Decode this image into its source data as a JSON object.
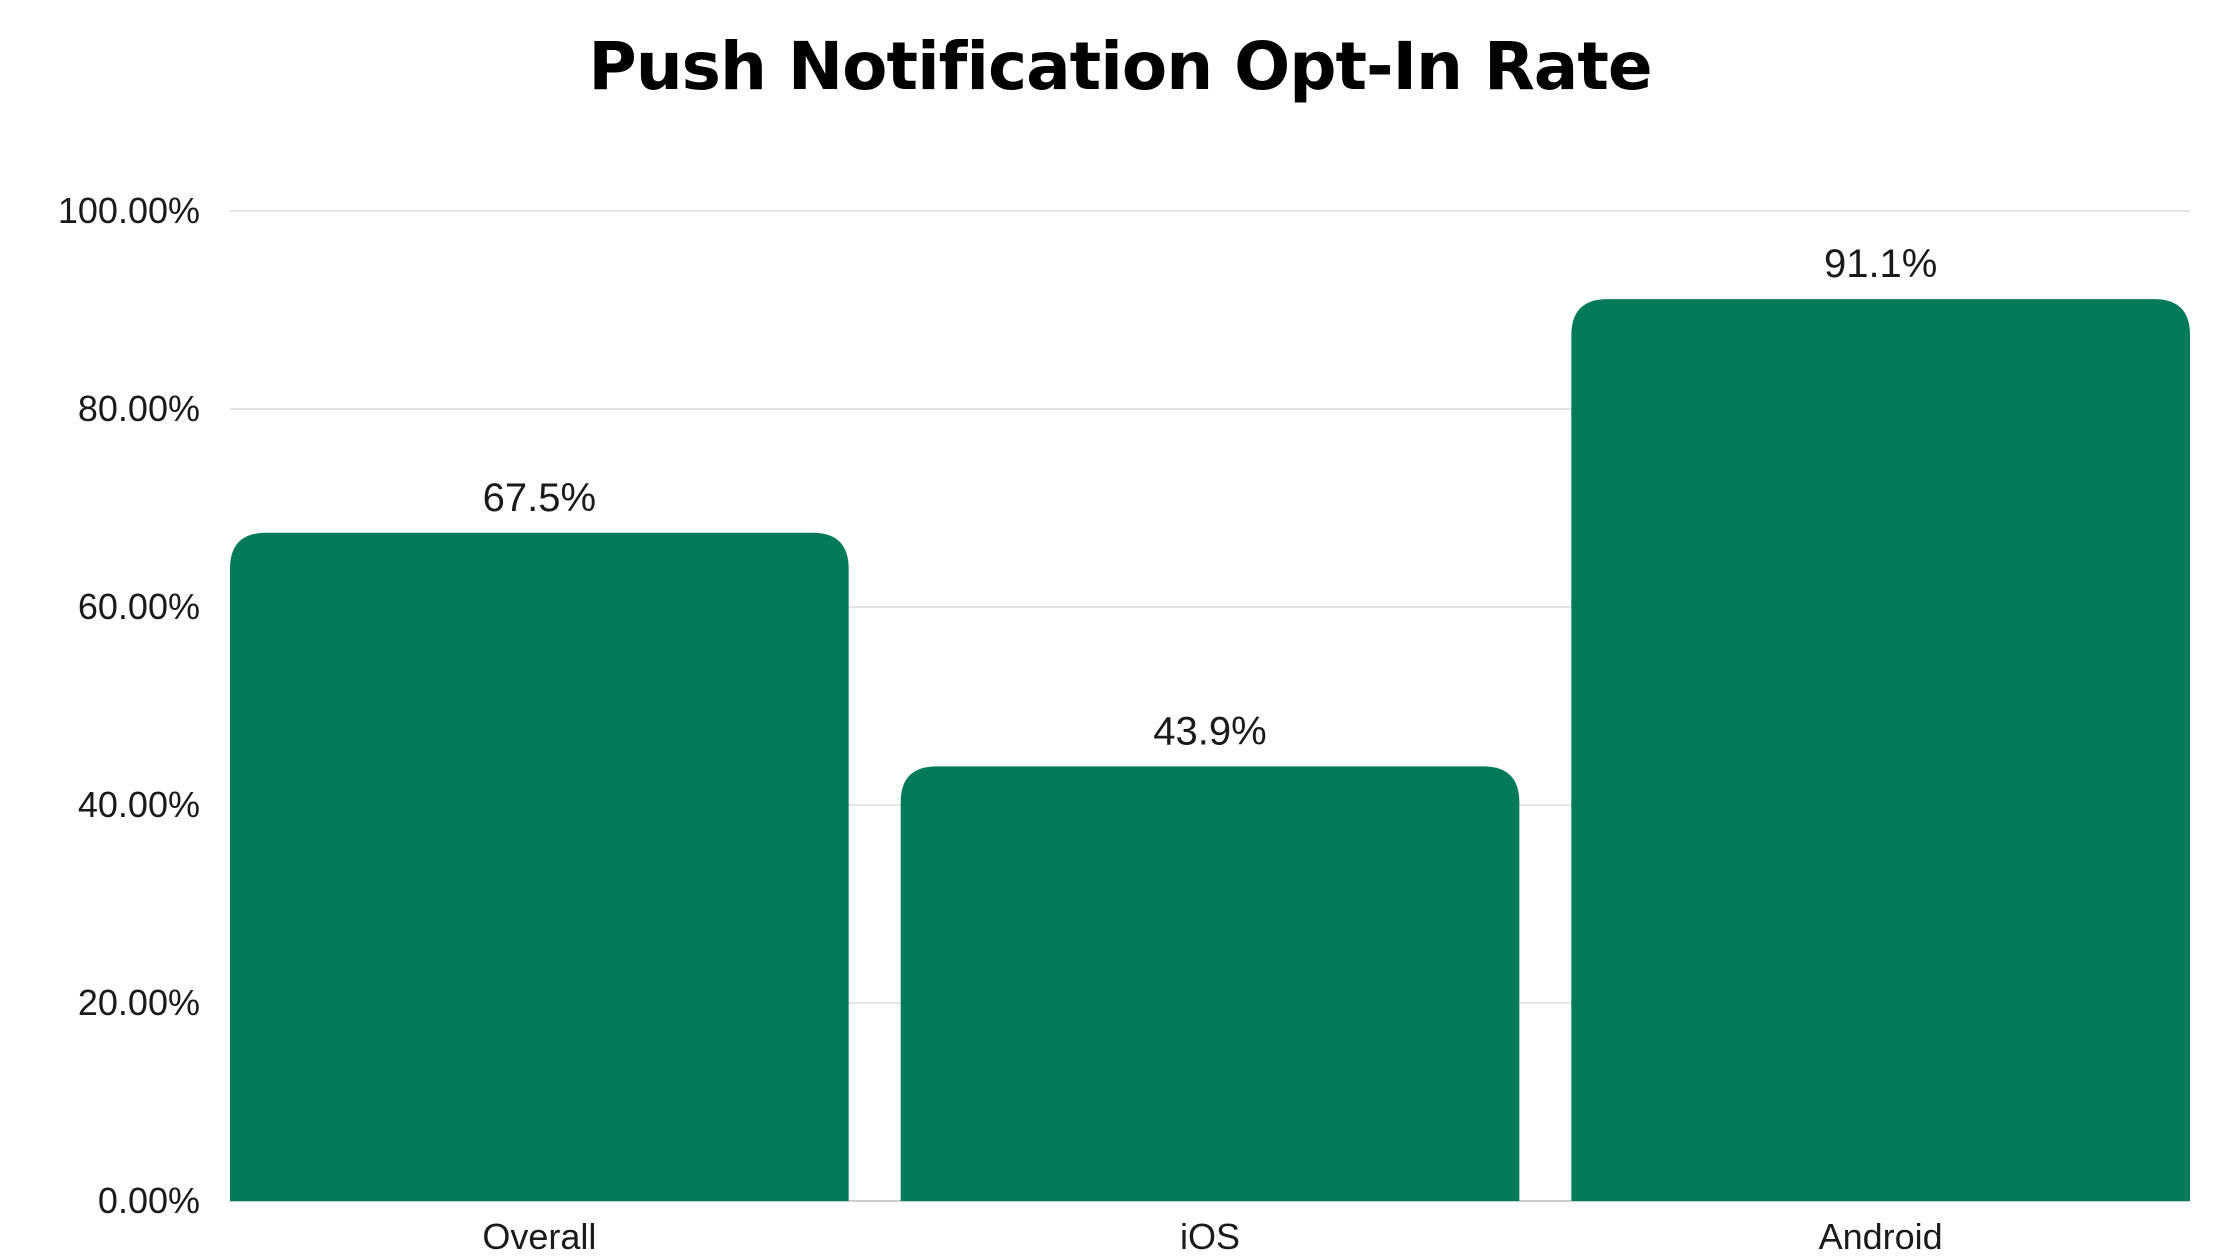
{
  "chart_data": {
    "type": "bar",
    "title": "Push Notification Opt-In Rate",
    "categories": [
      "Overall",
      "iOS",
      "Android"
    ],
    "values": [
      67.5,
      43.9,
      91.1
    ],
    "data_labels": [
      "67.5%",
      "43.9%",
      "91.1%"
    ],
    "ylim": [
      0,
      100
    ],
    "y_ticks": [
      0,
      20,
      40,
      60,
      80,
      100
    ],
    "y_tick_labels": [
      "0.00%",
      "20.00%",
      "40.00%",
      "60.00%",
      "80.00%",
      "100.00%"
    ],
    "xlabel": "",
    "ylabel": "",
    "grid": true,
    "legend": "none",
    "bar_color": "#037a5a",
    "grid_color": "#dcdcdc"
  }
}
